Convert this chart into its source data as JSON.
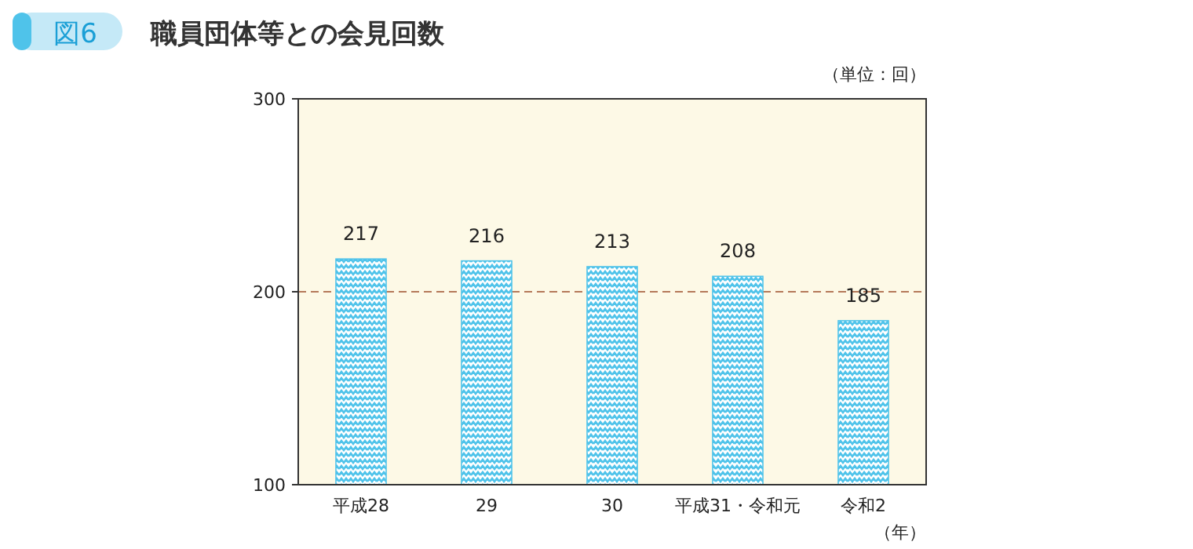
{
  "chart_data": {
    "type": "bar",
    "title": "職員団体等との会見回数",
    "annotations": [
      "図6",
      "（単位：回）",
      "（年）"
    ],
    "categories": [
      "平成28",
      "29",
      "30",
      "平成31・令和元",
      "令和2"
    ],
    "values": [
      217,
      216,
      213,
      208,
      185
    ],
    "color": "#4fc3ea",
    "ylim": [
      100,
      300
    ],
    "yticks": [
      100,
      200,
      300
    ],
    "ref_lines": [
      {
        "axis": "y",
        "value": 200,
        "color": "#b5795a",
        "line_style": "dashed"
      }
    ],
    "data_labels": true
  }
}
